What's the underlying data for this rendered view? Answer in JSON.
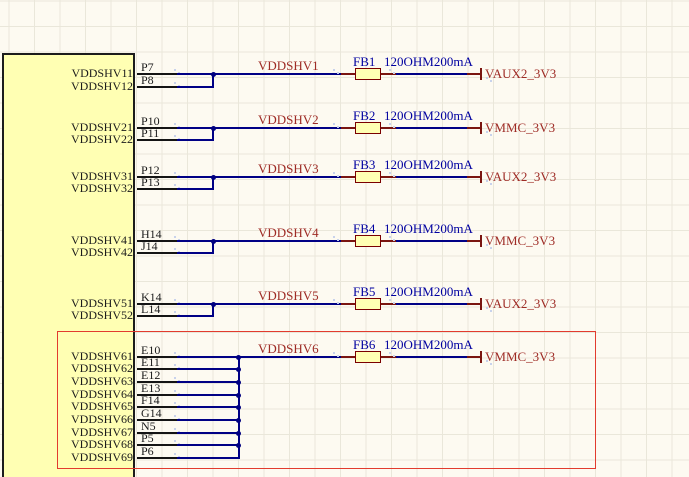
{
  "colors": {
    "background": "#FDFAF1",
    "grid": "#EAE7DA",
    "wire": "#000085",
    "pin": "#141414",
    "net_label": "#9E2B25",
    "fb_label": "#0000A0",
    "bead_fill": "#FFFFB3",
    "bead_border": "#7A0000",
    "component_fill": "#FFFFB3",
    "component_border": "#1C1C1C",
    "highlight_border": "#E23B2E",
    "junction": "#000080"
  },
  "rows": [
    {
      "net_label": "VDDSHV1",
      "fb_ref": "FB1",
      "fb_value": "120OHM200mA",
      "output_net": "VAUX2_3V3",
      "pins": [
        {
          "name": "VDDSHV11",
          "number": "P7"
        },
        {
          "name": "VDDSHV12",
          "number": "P8"
        }
      ]
    },
    {
      "net_label": "VDDSHV2",
      "fb_ref": "FB2",
      "fb_value": "120OHM200mA",
      "output_net": "VMMC_3V3",
      "pins": [
        {
          "name": "VDDSHV21",
          "number": "P10"
        },
        {
          "name": "VDDSHV22",
          "number": "P11"
        }
      ]
    },
    {
      "net_label": "VDDSHV3",
      "fb_ref": "FB3",
      "fb_value": "120OHM200mA",
      "output_net": "VAUX2_3V3",
      "pins": [
        {
          "name": "VDDSHV31",
          "number": "P12"
        },
        {
          "name": "VDDSHV32",
          "number": "P13"
        }
      ]
    },
    {
      "net_label": "VDDSHV4",
      "fb_ref": "FB4",
      "fb_value": "120OHM200mA",
      "output_net": "VMMC_3V3",
      "pins": [
        {
          "name": "VDDSHV41",
          "number": "H14"
        },
        {
          "name": "VDDSHV42",
          "number": "J14"
        }
      ]
    },
    {
      "net_label": "VDDSHV5",
      "fb_ref": "FB5",
      "fb_value": "120OHM200mA",
      "output_net": "VAUX2_3V3",
      "pins": [
        {
          "name": "VDDSHV51",
          "number": "K14"
        },
        {
          "name": "VDDSHV52",
          "number": "L14"
        }
      ]
    },
    {
      "net_label": "VDDSHV6",
      "fb_ref": "FB6",
      "fb_value": "120OHM200mA",
      "output_net": "VMMC_3V3",
      "pins": [
        {
          "name": "VDDSHV61",
          "number": "E10"
        },
        {
          "name": "VDDSHV62",
          "number": "E11"
        },
        {
          "name": "VDDSHV63",
          "number": "E12"
        },
        {
          "name": "VDDSHV64",
          "number": "E13"
        },
        {
          "name": "VDDSHV65",
          "number": "F14"
        },
        {
          "name": "VDDSHV66",
          "number": "G14"
        },
        {
          "name": "VDDSHV67",
          "number": "N5"
        },
        {
          "name": "VDDSHV68",
          "number": "P5"
        },
        {
          "name": "VDDSHV69",
          "number": "P6"
        }
      ]
    }
  ]
}
